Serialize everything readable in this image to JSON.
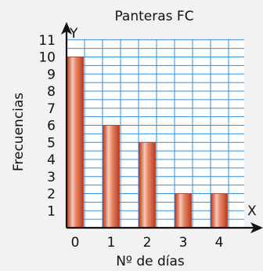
{
  "chart_data": {
    "type": "bar",
    "title": "Panteras FC",
    "xlabel": "Nº de días",
    "ylabel": "Frecuencias",
    "x_axis_letter": "X",
    "y_axis_letter": "Y",
    "categories": [
      "0",
      "1",
      "2",
      "3",
      "4"
    ],
    "values": [
      10,
      6,
      5,
      2,
      2
    ],
    "y_ticks": [
      "1",
      "2",
      "3",
      "4",
      "5",
      "6",
      "7",
      "8",
      "9",
      "10",
      "11"
    ],
    "ylim": [
      0,
      11
    ],
    "grid": true,
    "colors": {
      "grid": "#2f8fe0",
      "grid_fill": "#ffffff",
      "bar_dark": "#b93a1e",
      "bar_mid": "#e8886a",
      "bar_light": "#f7c9b6",
      "axis": "#111111",
      "background": "#f2f2f2"
    }
  }
}
